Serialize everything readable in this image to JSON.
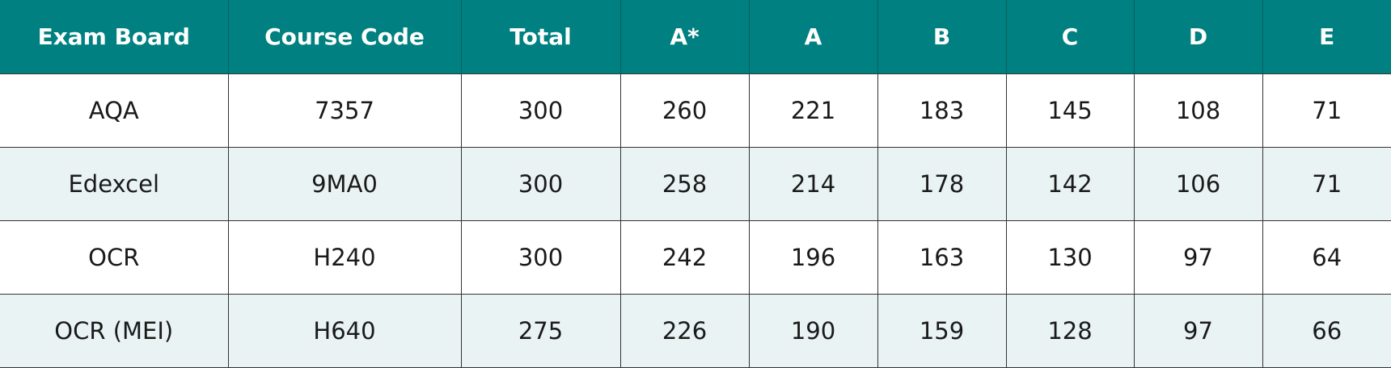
{
  "table": {
    "header": [
      "Exam Board",
      "Course Code",
      "Total",
      "A*",
      "A",
      "B",
      "C",
      "D",
      "E"
    ],
    "rows": [
      [
        "AQA",
        "7357",
        300,
        260,
        221,
        183,
        145,
        108,
        71
      ],
      [
        "Edexcel",
        "9MA0",
        300,
        258,
        214,
        178,
        142,
        106,
        71
      ],
      [
        "OCR",
        "H240",
        300,
        242,
        196,
        163,
        130,
        97,
        64
      ],
      [
        "OCR (MEI)",
        "H640",
        275,
        226,
        190,
        159,
        128,
        97,
        66
      ]
    ]
  }
}
